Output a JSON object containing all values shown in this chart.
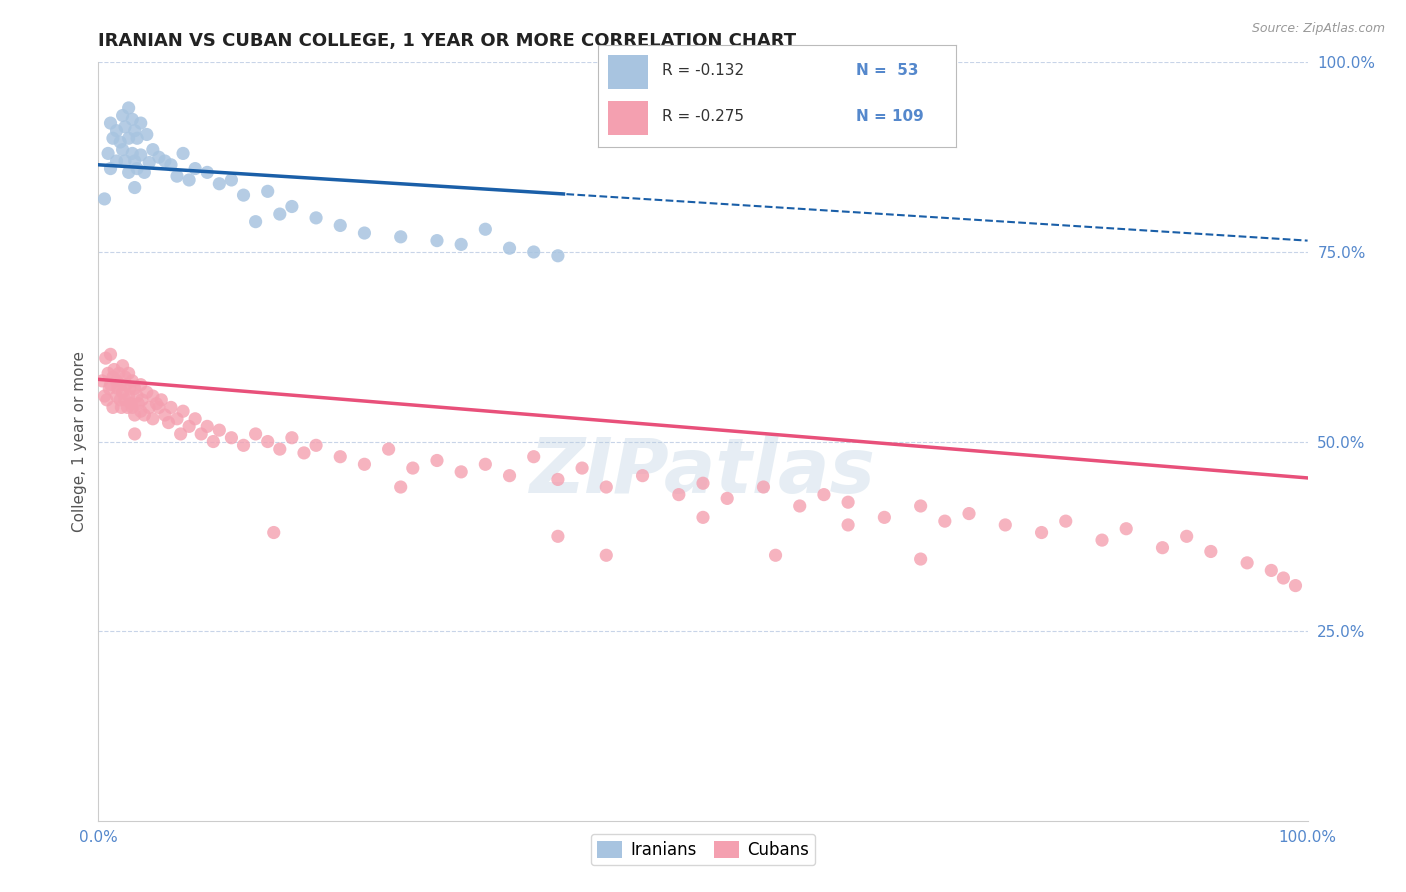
{
  "title": "IRANIAN VS CUBAN COLLEGE, 1 YEAR OR MORE CORRELATION CHART",
  "source": "Source: ZipAtlas.com",
  "ylabel": "College, 1 year or more",
  "xlim": [
    0.0,
    1.0
  ],
  "ylim": [
    0.0,
    1.0
  ],
  "iranian_color": "#a8c4e0",
  "cuban_color": "#f4a0b0",
  "trendline_iranian_color": "#1a5fa8",
  "trendline_cuban_color": "#e8507a",
  "grid_color": "#c8d4e8",
  "background_color": "#ffffff",
  "title_color": "#222222",
  "axis_label_color": "#555555",
  "tick_color": "#5588cc",
  "watermark": "ZIPatlas",
  "legend_r1": "R = -0.132",
  "legend_n1": "53",
  "legend_r2": "R = -0.275",
  "legend_n2": "109",
  "iranians_x": [
    0.005,
    0.008,
    0.01,
    0.01,
    0.012,
    0.015,
    0.015,
    0.018,
    0.02,
    0.02,
    0.022,
    0.022,
    0.025,
    0.025,
    0.025,
    0.028,
    0.028,
    0.03,
    0.03,
    0.03,
    0.032,
    0.032,
    0.035,
    0.035,
    0.038,
    0.04,
    0.042,
    0.045,
    0.05,
    0.055,
    0.06,
    0.065,
    0.07,
    0.075,
    0.08,
    0.09,
    0.1,
    0.11,
    0.12,
    0.13,
    0.14,
    0.15,
    0.16,
    0.18,
    0.2,
    0.22,
    0.25,
    0.28,
    0.3,
    0.32,
    0.34,
    0.36,
    0.38
  ],
  "iranians_y": [
    0.82,
    0.88,
    0.92,
    0.86,
    0.9,
    0.91,
    0.87,
    0.895,
    0.93,
    0.885,
    0.915,
    0.87,
    0.94,
    0.9,
    0.855,
    0.925,
    0.88,
    0.91,
    0.87,
    0.835,
    0.9,
    0.86,
    0.92,
    0.878,
    0.855,
    0.905,
    0.868,
    0.885,
    0.875,
    0.87,
    0.865,
    0.85,
    0.88,
    0.845,
    0.86,
    0.855,
    0.84,
    0.845,
    0.825,
    0.79,
    0.83,
    0.8,
    0.81,
    0.795,
    0.785,
    0.775,
    0.77,
    0.765,
    0.76,
    0.78,
    0.755,
    0.75,
    0.745
  ],
  "cubans_x": [
    0.003,
    0.005,
    0.006,
    0.007,
    0.008,
    0.009,
    0.01,
    0.01,
    0.012,
    0.012,
    0.013,
    0.015,
    0.015,
    0.016,
    0.017,
    0.018,
    0.018,
    0.019,
    0.02,
    0.02,
    0.022,
    0.022,
    0.023,
    0.024,
    0.025,
    0.025,
    0.026,
    0.027,
    0.028,
    0.028,
    0.03,
    0.03,
    0.032,
    0.033,
    0.035,
    0.035,
    0.036,
    0.038,
    0.04,
    0.042,
    0.045,
    0.045,
    0.048,
    0.05,
    0.052,
    0.055,
    0.058,
    0.06,
    0.065,
    0.068,
    0.07,
    0.075,
    0.08,
    0.085,
    0.09,
    0.095,
    0.1,
    0.11,
    0.12,
    0.13,
    0.14,
    0.15,
    0.16,
    0.17,
    0.18,
    0.2,
    0.22,
    0.24,
    0.26,
    0.28,
    0.3,
    0.32,
    0.34,
    0.36,
    0.38,
    0.4,
    0.42,
    0.45,
    0.48,
    0.5,
    0.52,
    0.55,
    0.58,
    0.6,
    0.62,
    0.65,
    0.68,
    0.7,
    0.72,
    0.75,
    0.78,
    0.8,
    0.83,
    0.85,
    0.88,
    0.9,
    0.92,
    0.95,
    0.97,
    0.98,
    0.99,
    0.03,
    0.145,
    0.25,
    0.38,
    0.42,
    0.5,
    0.56,
    0.62,
    0.68
  ],
  "cubans_y": [
    0.58,
    0.56,
    0.61,
    0.555,
    0.59,
    0.57,
    0.615,
    0.575,
    0.585,
    0.545,
    0.595,
    0.58,
    0.56,
    0.57,
    0.59,
    0.555,
    0.575,
    0.545,
    0.6,
    0.565,
    0.585,
    0.555,
    0.575,
    0.545,
    0.59,
    0.56,
    0.57,
    0.55,
    0.58,
    0.545,
    0.57,
    0.535,
    0.56,
    0.55,
    0.575,
    0.54,
    0.555,
    0.535,
    0.565,
    0.545,
    0.56,
    0.53,
    0.55,
    0.545,
    0.555,
    0.535,
    0.525,
    0.545,
    0.53,
    0.51,
    0.54,
    0.52,
    0.53,
    0.51,
    0.52,
    0.5,
    0.515,
    0.505,
    0.495,
    0.51,
    0.5,
    0.49,
    0.505,
    0.485,
    0.495,
    0.48,
    0.47,
    0.49,
    0.465,
    0.475,
    0.46,
    0.47,
    0.455,
    0.48,
    0.45,
    0.465,
    0.44,
    0.455,
    0.43,
    0.445,
    0.425,
    0.44,
    0.415,
    0.43,
    0.42,
    0.4,
    0.415,
    0.395,
    0.405,
    0.39,
    0.38,
    0.395,
    0.37,
    0.385,
    0.36,
    0.375,
    0.355,
    0.34,
    0.33,
    0.32,
    0.31,
    0.51,
    0.38,
    0.44,
    0.375,
    0.35,
    0.4,
    0.35,
    0.39,
    0.345
  ]
}
